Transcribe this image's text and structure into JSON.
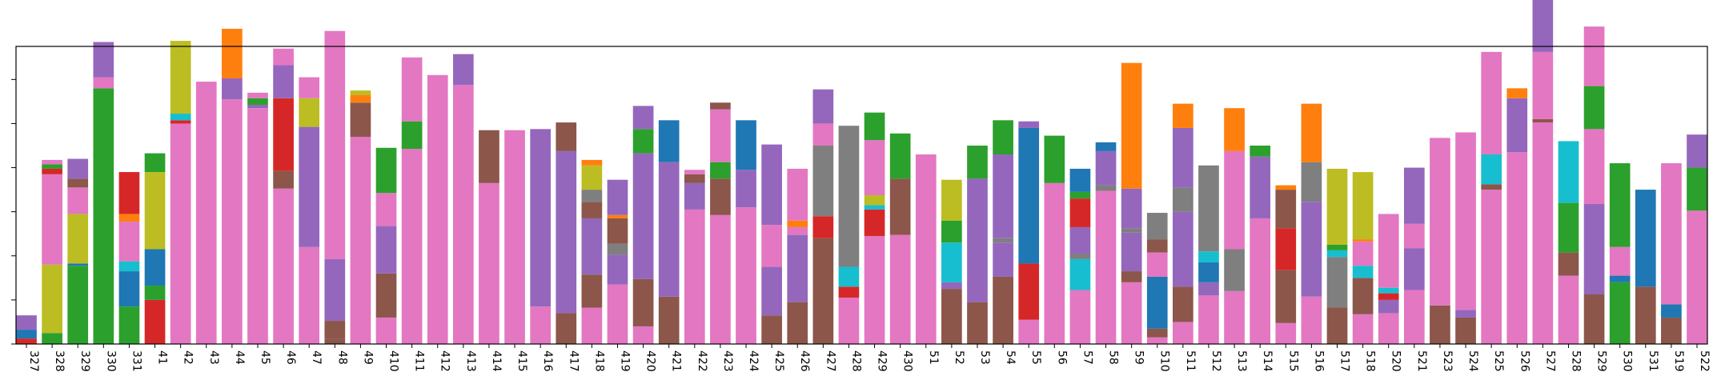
{
  "chart_data": {
    "type": "bar",
    "stacked": true,
    "title": "",
    "xlabel": "",
    "ylabel": "",
    "ylim": [
      0,
      135
    ],
    "grid": false,
    "legend": "none",
    "categories": [
      "327",
      "328",
      "329",
      "330",
      "331",
      "41",
      "42",
      "43",
      "44",
      "45",
      "46",
      "47",
      "48",
      "49",
      "410",
      "411",
      "412",
      "413",
      "414",
      "415",
      "416",
      "417",
      "418",
      "419",
      "420",
      "421",
      "422",
      "423",
      "424",
      "425",
      "426",
      "427",
      "428",
      "429",
      "430",
      "51",
      "52",
      "53",
      "54",
      "55",
      "56",
      "57",
      "58",
      "59",
      "510",
      "511",
      "512",
      "513",
      "514",
      "515",
      "516",
      "517",
      "518",
      "520",
      "521",
      "523",
      "524",
      "525",
      "526",
      "527",
      "528",
      "529",
      "530",
      "531",
      "519",
      "522"
    ],
    "palette": {
      "pink": "#e377c2",
      "brown": "#8c564b",
      "purple": "#9467bd",
      "red": "#d62728",
      "blue": "#1f77b4",
      "green": "#2ca02c",
      "orange": "#ff7f0e",
      "olive": "#bcbd22",
      "cyan": "#17becf",
      "gray": "#7f7f7f"
    },
    "stacks": [
      [
        [
          "red",
          2.5
        ],
        [
          "blue",
          4
        ],
        [
          "purple",
          6.5
        ]
      ],
      [
        [
          "green",
          5
        ],
        [
          "olive",
          31
        ],
        [
          "pink",
          41
        ],
        [
          "red",
          2.5
        ],
        [
          "green",
          2
        ],
        [
          "pink",
          2
        ]
      ],
      [
        [
          "green",
          35.5
        ],
        [
          "blue",
          1
        ],
        [
          "olive",
          22.5
        ],
        [
          "pink",
          12
        ],
        [
          "brown",
          4
        ],
        [
          "purple",
          9
        ]
      ],
      [
        [
          "green",
          116
        ],
        [
          "pink",
          5
        ],
        [
          "purple",
          16
        ]
      ],
      [
        [
          "green",
          17
        ],
        [
          "blue",
          16
        ],
        [
          "cyan",
          4.5
        ],
        [
          "pink",
          18
        ],
        [
          "orange",
          3.5
        ],
        [
          "red",
          19
        ]
      ],
      [
        [
          "red",
          20
        ],
        [
          "green",
          6.5
        ],
        [
          "blue",
          16.5
        ],
        [
          "olive",
          35
        ],
        [
          "green",
          8.5
        ]
      ],
      [
        [
          "pink",
          100
        ],
        [
          "red",
          1.5
        ],
        [
          "cyan",
          3
        ],
        [
          "olive",
          33
        ]
      ],
      [
        [
          "pink",
          119
        ]
      ],
      [
        [
          "pink",
          111
        ],
        [
          "purple",
          9.5
        ],
        [
          "orange",
          22.5
        ]
      ],
      [
        [
          "pink",
          107
        ],
        [
          "purple",
          1.5
        ],
        [
          "green",
          3
        ],
        [
          "pink",
          2.5
        ]
      ],
      [
        [
          "pink",
          70.5
        ],
        [
          "brown",
          8
        ],
        [
          "red",
          33
        ],
        [
          "purple",
          15
        ],
        [
          "pink",
          7.5
        ]
      ],
      [
        [
          "pink",
          44
        ],
        [
          "purple",
          54.5
        ],
        [
          "olive",
          13
        ],
        [
          "pink",
          9.5
        ]
      ],
      [
        [
          "brown",
          2.5
        ],
        [
          "brown",
          8
        ],
        [
          "purple",
          28
        ],
        [
          "pink",
          103.5
        ]
      ],
      [
        [
          "pink",
          94
        ],
        [
          "brown",
          15.5
        ],
        [
          "orange",
          3.5
        ],
        [
          "olive",
          2
        ]
      ],
      [
        [
          "pink",
          12
        ],
        [
          "brown",
          20
        ],
        [
          "purple",
          21.5
        ],
        [
          "pink",
          15
        ],
        [
          "green",
          20.5
        ]
      ],
      [
        [
          "pink",
          88.5
        ],
        [
          "green",
          12.5
        ],
        [
          "pink",
          29
        ]
      ],
      [
        [
          "pink",
          122
        ]
      ],
      [
        [
          "pink",
          117.5
        ],
        [
          "purple",
          14
        ]
      ],
      [
        [
          "pink",
          73
        ],
        [
          "brown",
          24
        ]
      ],
      [
        [
          "pink",
          97
        ]
      ],
      [
        [
          "pink",
          17
        ],
        [
          "purple",
          80.5
        ]
      ],
      [
        [
          "brown",
          14
        ],
        [
          "purple",
          73.5
        ],
        [
          "brown",
          13
        ]
      ],
      [
        [
          "pink",
          16.5
        ],
        [
          "brown",
          15
        ],
        [
          "purple",
          25.5
        ],
        [
          "brown",
          7.5
        ],
        [
          "gray",
          5.5
        ],
        [
          "olive",
          11
        ],
        [
          "orange",
          2.5
        ]
      ],
      [
        [
          "pink",
          27
        ],
        [
          "purple",
          13.5
        ],
        [
          "gray",
          5
        ],
        [
          "brown",
          11.5
        ],
        [
          "orange",
          1.5
        ],
        [
          "purple",
          16
        ]
      ],
      [
        [
          "pink",
          8
        ],
        [
          "brown",
          21.5
        ],
        [
          "purple",
          57
        ],
        [
          "green",
          11
        ],
        [
          "purple",
          10.5
        ]
      ],
      [
        [
          "brown",
          21.5
        ],
        [
          "purple",
          61
        ],
        [
          "blue",
          19
        ]
      ],
      [
        [
          "pink",
          61
        ],
        [
          "purple",
          12
        ],
        [
          "brown",
          4
        ],
        [
          "pink",
          2
        ]
      ],
      [
        [
          "pink",
          58.5
        ],
        [
          "brown",
          16.5
        ],
        [
          "green",
          7.5
        ],
        [
          "pink",
          24
        ],
        [
          "brown",
          3
        ]
      ],
      [
        [
          "pink",
          62
        ],
        [
          "purple",
          17
        ],
        [
          "blue",
          22.5
        ]
      ],
      [
        [
          "brown",
          13
        ],
        [
          "purple",
          22
        ],
        [
          "pink",
          19
        ],
        [
          "purple",
          36.5
        ]
      ],
      [
        [
          "brown",
          19
        ],
        [
          "purple",
          30.5
        ],
        [
          "pink",
          3.5
        ],
        [
          "orange",
          3
        ],
        [
          "pink",
          23.5
        ]
      ],
      [
        [
          "brown",
          48
        ],
        [
          "red",
          10
        ],
        [
          "gray",
          32
        ],
        [
          "pink",
          10
        ],
        [
          "purple",
          15.5
        ]
      ],
      [
        [
          "pink",
          21
        ],
        [
          "red",
          5
        ],
        [
          "cyan",
          9
        ],
        [
          "gray",
          64
        ]
      ],
      [
        [
          "pink",
          49
        ],
        [
          "red",
          12
        ],
        [
          "cyan",
          2
        ],
        [
          "olive",
          4.5
        ],
        [
          "pink",
          25
        ],
        [
          "green",
          12.5
        ]
      ],
      [
        [
          "pink",
          49.5
        ],
        [
          "brown",
          25.5
        ],
        [
          "green",
          20.5
        ]
      ],
      [
        [
          "pink",
          86
        ]
      ],
      [
        [
          "brown",
          25
        ],
        [
          "purple",
          3
        ],
        [
          "cyan",
          18
        ],
        [
          "green",
          10
        ],
        [
          "olive",
          18.5
        ]
      ],
      [
        [
          "brown",
          19
        ],
        [
          "purple",
          56
        ],
        [
          "green",
          15
        ]
      ],
      [
        [
          "brown",
          30.5
        ],
        [
          "purple",
          15.5
        ],
        [
          "gray",
          2
        ],
        [
          "purple",
          38
        ],
        [
          "green",
          15.5
        ]
      ],
      [
        [
          "pink",
          11
        ],
        [
          "red",
          25.5
        ],
        [
          "blue",
          61.5
        ],
        [
          "purple",
          3
        ]
      ],
      [
        [
          "pink",
          73
        ],
        [
          "green",
          21.5
        ]
      ],
      [
        [
          "pink",
          24.5
        ],
        [
          "cyan",
          14
        ],
        [
          "gray",
          2.5
        ],
        [
          "purple",
          12
        ],
        [
          "red",
          13
        ],
        [
          "green",
          3
        ],
        [
          "blue",
          10.5
        ]
      ],
      [
        [
          "pink",
          69.5
        ],
        [
          "gray",
          2.5
        ],
        [
          "purple",
          15.5
        ],
        [
          "blue",
          4
        ]
      ],
      [
        [
          "pink",
          28
        ],
        [
          "brown",
          5
        ],
        [
          "purple",
          17.5
        ],
        [
          "gray",
          2
        ],
        [
          "purple",
          18
        ],
        [
          "orange",
          57
        ]
      ],
      [
        [
          "pink",
          3
        ],
        [
          "brown",
          4
        ],
        [
          "blue",
          23.5
        ],
        [
          "pink",
          11
        ],
        [
          "brown",
          6
        ],
        [
          "gray",
          12
        ]
      ],
      [
        [
          "pink",
          10
        ],
        [
          "brown",
          16
        ],
        [
          "purple",
          34
        ],
        [
          "gray",
          11
        ],
        [
          "purple",
          27
        ],
        [
          "orange",
          11
        ]
      ],
      [
        [
          "pink",
          22
        ],
        [
          "purple",
          6
        ],
        [
          "blue",
          9
        ],
        [
          "cyan",
          5
        ],
        [
          "gray",
          39
        ]
      ],
      [
        [
          "pink",
          24
        ],
        [
          "gray",
          19
        ],
        [
          "pink",
          44.5
        ],
        [
          "orange",
          19.5
        ]
      ],
      [
        [
          "pink",
          57
        ],
        [
          "purple",
          28
        ],
        [
          "green",
          5
        ]
      ],
      [
        [
          "pink",
          9.5
        ],
        [
          "brown",
          24
        ],
        [
          "red",
          19
        ],
        [
          "brown",
          17.5
        ],
        [
          "orange",
          2
        ]
      ],
      [
        [
          "pink",
          21.5
        ],
        [
          "purple",
          43
        ],
        [
          "gray",
          18
        ],
        [
          "orange",
          26.5
        ]
      ],
      [
        [
          "brown",
          16.5
        ],
        [
          "gray",
          23
        ],
        [
          "cyan",
          3
        ],
        [
          "green",
          2.5
        ],
        [
          "olive",
          34.5
        ]
      ],
      [
        [
          "pink",
          13.5
        ],
        [
          "brown",
          16.5
        ],
        [
          "cyan",
          5.5
        ],
        [
          "pink",
          11
        ],
        [
          "orange",
          1
        ],
        [
          "olive",
          30.5
        ]
      ],
      [
        [
          "pink",
          14
        ],
        [
          "purple",
          6
        ],
        [
          "red",
          3
        ],
        [
          "cyan",
          2.5
        ],
        [
          "pink",
          33.5
        ]
      ],
      [
        [
          "pink",
          24.5
        ],
        [
          "purple",
          19
        ],
        [
          "pink",
          11
        ],
        [
          "purple",
          25.5
        ]
      ],
      [
        [
          "brown",
          17.5
        ],
        [
          "pink",
          76
        ]
      ],
      [
        [
          "brown",
          12
        ],
        [
          "purple",
          3.5
        ],
        [
          "pink",
          80.5
        ]
      ],
      [
        [
          "pink",
          70
        ],
        [
          "brown",
          2.5
        ],
        [
          "cyan",
          13.5
        ],
        [
          "pink",
          46.5
        ]
      ],
      [
        [
          "pink",
          87
        ],
        [
          "purple",
          24.5
        ],
        [
          "orange",
          4.5
        ]
      ],
      [
        [
          "pink",
          100.5
        ],
        [
          "brown",
          1.5
        ],
        [
          "pink",
          30.5
        ],
        [
          "purple",
          34.5
        ]
      ],
      [
        [
          "pink",
          31
        ],
        [
          "brown",
          10.5
        ],
        [
          "green",
          22.5
        ],
        [
          "cyan",
          28
        ]
      ],
      [
        [
          "brown",
          22.5
        ],
        [
          "purple",
          41
        ],
        [
          "pink",
          34
        ],
        [
          "green",
          19.5
        ],
        [
          "pink",
          27
        ]
      ],
      [
        [
          "green",
          28
        ],
        [
          "blue",
          3
        ],
        [
          "pink",
          13
        ],
        [
          "green",
          38
        ]
      ],
      [
        [
          "brown",
          26
        ],
        [
          "blue",
          44
        ]
      ],
      [
        [
          "brown",
          12
        ],
        [
          "blue",
          6
        ],
        [
          "pink",
          64
        ]
      ],
      [
        [
          "pink",
          60.5
        ],
        [
          "green",
          19.5
        ],
        [
          "purple",
          15
        ]
      ]
    ]
  }
}
